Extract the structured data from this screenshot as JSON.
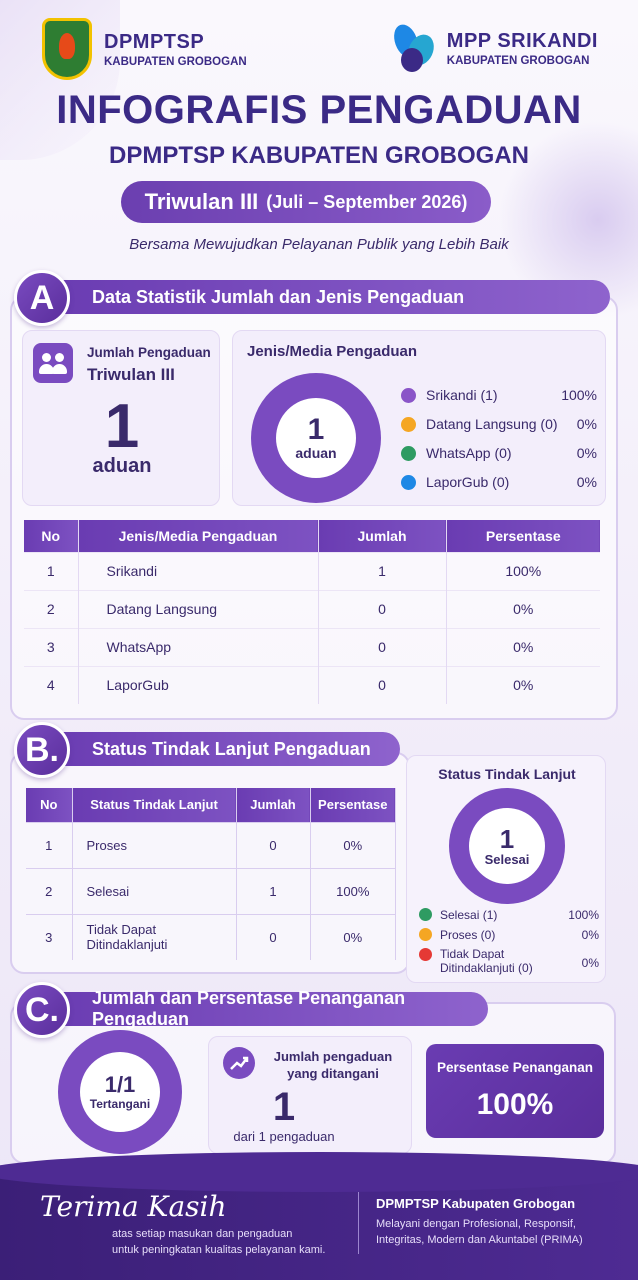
{
  "header": {
    "left_logo_line1": "DPMPTSP",
    "left_logo_line2": "KABUPATEN GROBOGAN",
    "right_logo_line1": "MPP SRIKANDI",
    "right_logo_line2": "KABUPATEN GROBOGAN",
    "title": "INFOGRAFIS PENGADUAN",
    "subtitle": "DPMPTSP KABUPATEN GROBOGAN",
    "period_main": "Triwulan III",
    "period_sub": "(Juli – September 2026)",
    "tagline": "Bersama Mewujudkan Pelayanan Publik yang Lebih Baik"
  },
  "section_a": {
    "badge": "A",
    "title": "Data Statistik Jumlah dan Jenis Pengaduan",
    "count_card": {
      "label_line1": "Jumlah Pengaduan",
      "label_line2": "Triwulan III",
      "value": "1",
      "unit": "aduan",
      "icon": "people-icon"
    },
    "media_card": {
      "title": "Jenis/Media Pengaduan",
      "donut_value": "1",
      "donut_unit": "aduan",
      "legend": [
        {
          "label": "Srikandi (1)",
          "pct": "100%",
          "color": "#8a55c8"
        },
        {
          "label": "Datang Langsung (0)",
          "pct": "0%",
          "color": "#f5a623"
        },
        {
          "label": "WhatsApp (0)",
          "pct": "0%",
          "color": "#2e9b62"
        },
        {
          "label": "LaporGub (0)",
          "pct": "0%",
          "color": "#1e88e5"
        }
      ]
    },
    "table": {
      "headers": [
        "No",
        "Jenis/Media Pengaduan",
        "Jumlah",
        "Persentase"
      ],
      "rows": [
        [
          "1",
          "Srikandi",
          "1",
          "100%"
        ],
        [
          "2",
          "Datang Langsung",
          "0",
          "0%"
        ],
        [
          "3",
          "WhatsApp",
          "0",
          "0%"
        ],
        [
          "4",
          "LaporGub",
          "0",
          "0%"
        ]
      ]
    }
  },
  "section_b": {
    "badge": "B.",
    "title": "Status Tindak Lanjut Pengaduan",
    "table": {
      "headers": [
        "No",
        "Status Tindak Lanjut",
        "Jumlah",
        "Persentase"
      ],
      "rows": [
        [
          "1",
          "Proses",
          "0",
          "0%"
        ],
        [
          "2",
          "Selesai",
          "1",
          "100%"
        ],
        [
          "3",
          "Tidak Dapat Ditindaklanjuti",
          "0",
          "0%"
        ]
      ]
    },
    "status_card": {
      "title": "Status Tindak Lanjut",
      "donut_value": "1",
      "donut_unit": "Selesai",
      "legend": [
        {
          "label": "Selesai (1)",
          "pct": "100%",
          "color": "#2e9b62"
        },
        {
          "label": "Proses (0)",
          "pct": "0%",
          "color": "#f5a623"
        },
        {
          "label_line1": "Tidak Dapat",
          "label_line2": "Ditindaklanjuti (0)",
          "pct": "0%",
          "color": "#e53935"
        }
      ]
    }
  },
  "section_c": {
    "badge": "C.",
    "title": "Jumlah dan Persentase Penanganan Pengaduan",
    "donut_value": "1/1",
    "donut_unit": "Tertangani",
    "handled_card": {
      "label_line1": "Jumlah pengaduan",
      "label_line2": "yang ditangani",
      "value": "1",
      "sub": "dari 1 pengaduan",
      "icon": "chart-growth-icon"
    },
    "pct_card": {
      "label": "Persentase Penanganan",
      "value": "100%"
    }
  },
  "footer": {
    "thanks": "Terima Kasih",
    "thanks_line1": "atas setiap masukan dan pengaduan",
    "thanks_line2": "untuk peningkatan kualitas pelayanan kami.",
    "org": "DPMPTSP Kabupaten Grobogan",
    "motto_line1": "Melayani dengan Profesional, Responsif,",
    "motto_line2": "Integritas, Modern dan Akuntabel (PRIMA)"
  }
}
